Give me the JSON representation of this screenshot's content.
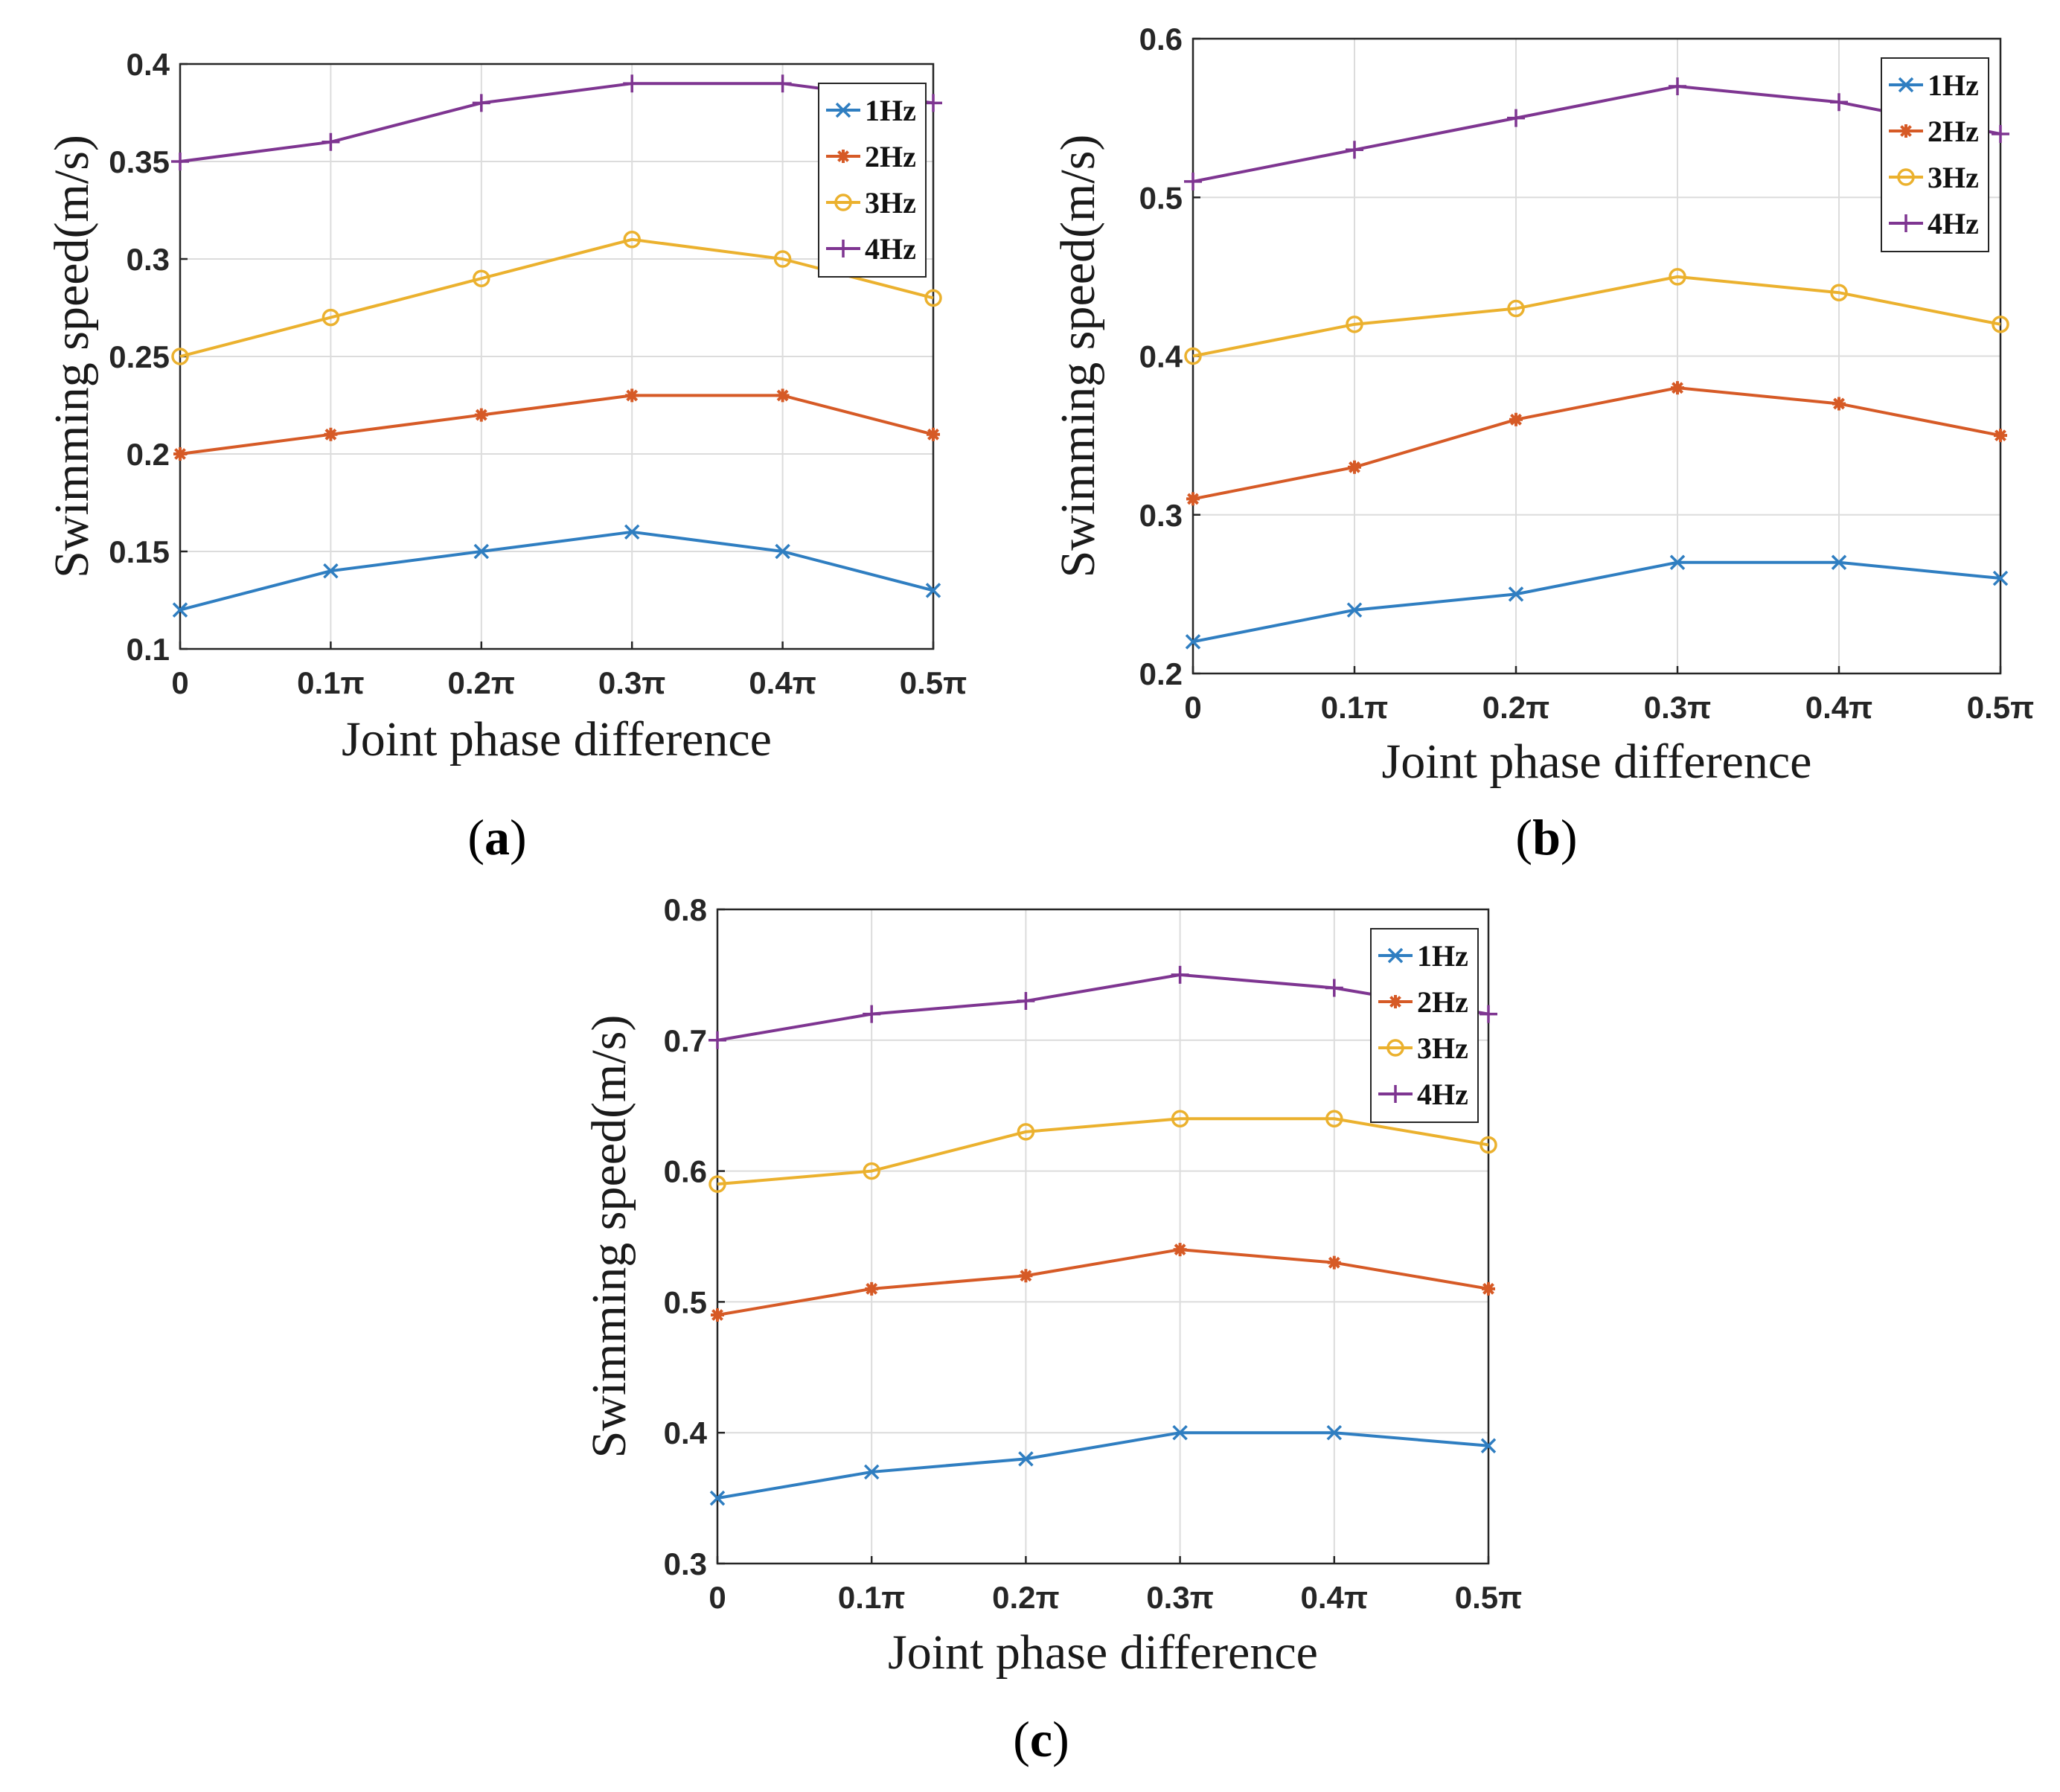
{
  "chart_data": [
    {
      "type": "line",
      "panel_label": "a",
      "xlabel": "Joint phase difference",
      "ylabel": "Swimming speed(m/s)",
      "categories": [
        "0",
        "0.1π",
        "0.2π",
        "0.3π",
        "0.4π",
        "0.5π"
      ],
      "x": [
        0,
        0.1,
        0.2,
        0.3,
        0.4,
        0.5
      ],
      "ylim": [
        0.1,
        0.4
      ],
      "yticks": [
        "0.1",
        "0.15",
        "0.2",
        "0.25",
        "0.3",
        "0.35",
        "0.4"
      ],
      "grid": true,
      "legend_position": "top-right",
      "series": [
        {
          "name": "1Hz",
          "color": "#2f7ec1",
          "marker": "x",
          "values": [
            0.12,
            0.14,
            0.15,
            0.16,
            0.15,
            0.13
          ]
        },
        {
          "name": "2Hz",
          "color": "#d65a26",
          "marker": "asterisk",
          "values": [
            0.2,
            0.21,
            0.22,
            0.23,
            0.23,
            0.21
          ]
        },
        {
          "name": "3Hz",
          "color": "#ebb12e",
          "marker": "circle",
          "values": [
            0.25,
            0.27,
            0.29,
            0.31,
            0.3,
            0.28
          ]
        },
        {
          "name": "4Hz",
          "color": "#7e3591",
          "marker": "plus",
          "values": [
            0.35,
            0.36,
            0.38,
            0.39,
            0.39,
            0.38
          ]
        }
      ]
    },
    {
      "type": "line",
      "panel_label": "b",
      "xlabel": "Joint phase difference",
      "ylabel": "Swimming speed(m/s)",
      "categories": [
        "0",
        "0.1π",
        "0.2π",
        "0.3π",
        "0.4π",
        "0.5π"
      ],
      "x": [
        0,
        0.1,
        0.2,
        0.3,
        0.4,
        0.5
      ],
      "ylim": [
        0.2,
        0.6
      ],
      "yticks": [
        "0.2",
        "0.3",
        "0.4",
        "0.5",
        "0.6"
      ],
      "grid": true,
      "legend_position": "top-right",
      "series": [
        {
          "name": "1Hz",
          "color": "#2f7ec1",
          "marker": "x",
          "values": [
            0.22,
            0.24,
            0.25,
            0.27,
            0.27,
            0.26
          ]
        },
        {
          "name": "2Hz",
          "color": "#d65a26",
          "marker": "asterisk",
          "values": [
            0.31,
            0.33,
            0.36,
            0.38,
            0.37,
            0.35
          ]
        },
        {
          "name": "3Hz",
          "color": "#ebb12e",
          "marker": "circle",
          "values": [
            0.4,
            0.42,
            0.43,
            0.45,
            0.44,
            0.42
          ]
        },
        {
          "name": "4Hz",
          "color": "#7e3591",
          "marker": "plus",
          "values": [
            0.51,
            0.53,
            0.55,
            0.57,
            0.56,
            0.54
          ]
        }
      ]
    },
    {
      "type": "line",
      "panel_label": "c",
      "xlabel": "Joint phase difference",
      "ylabel": "Swimming speed(m/s)",
      "categories": [
        "0",
        "0.1π",
        "0.2π",
        "0.3π",
        "0.4π",
        "0.5π"
      ],
      "x": [
        0,
        0.1,
        0.2,
        0.3,
        0.4,
        0.5
      ],
      "ylim": [
        0.3,
        0.8
      ],
      "yticks": [
        "0.3",
        "0.4",
        "0.5",
        "0.6",
        "0.7",
        "0.8"
      ],
      "grid": true,
      "legend_position": "top-right",
      "series": [
        {
          "name": "1Hz",
          "color": "#2f7ec1",
          "marker": "x",
          "values": [
            0.35,
            0.37,
            0.38,
            0.4,
            0.4,
            0.39
          ]
        },
        {
          "name": "2Hz",
          "color": "#d65a26",
          "marker": "asterisk",
          "values": [
            0.49,
            0.51,
            0.52,
            0.54,
            0.53,
            0.51
          ]
        },
        {
          "name": "3Hz",
          "color": "#ebb12e",
          "marker": "circle",
          "values": [
            0.59,
            0.6,
            0.63,
            0.64,
            0.64,
            0.62
          ]
        },
        {
          "name": "4Hz",
          "color": "#7e3591",
          "marker": "plus",
          "values": [
            0.7,
            0.72,
            0.73,
            0.75,
            0.74,
            0.72
          ]
        }
      ]
    }
  ]
}
